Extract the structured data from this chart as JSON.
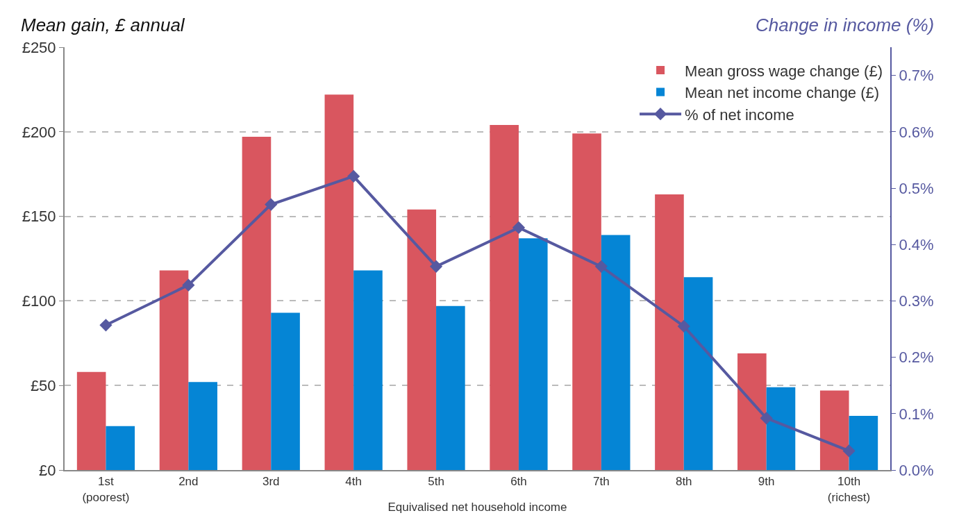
{
  "chart_data": {
    "type": "bar",
    "ylabel": "Mean gain, £ annual",
    "y2label": "Change in income (%)",
    "xlabel": "Equivalised net household income",
    "categories": [
      "1st\n(poorest)",
      "2nd",
      "3rd",
      "4th",
      "5th",
      "6th",
      "7th",
      "8th",
      "9th",
      "10th\n(richest)"
    ],
    "series": [
      {
        "name": "Mean gross wage change (£)",
        "color": "#d9565f",
        "values": [
          58,
          118,
          197,
          222,
          154,
          204,
          199,
          163,
          69,
          47
        ]
      },
      {
        "name": "Mean net income change (£)",
        "color": "#0585d5",
        "values": [
          26,
          52,
          93,
          118,
          97,
          137,
          139,
          114,
          49,
          32
        ]
      },
      {
        "name": "% of net income",
        "type": "line",
        "axis": "y2",
        "color": "#5659a0",
        "marker": "diamond",
        "values": [
          0.257,
          0.328,
          0.471,
          0.521,
          0.361,
          0.43,
          0.361,
          0.255,
          0.092,
          0.034
        ]
      }
    ],
    "ylim": [
      0,
      250
    ],
    "yticks": [
      {
        "value": 0,
        "label": "£0"
      },
      {
        "value": 50,
        "label": "£50"
      },
      {
        "value": 100,
        "label": "£100"
      },
      {
        "value": 150,
        "label": "£150"
      },
      {
        "value": 200,
        "label": "£200"
      },
      {
        "value": 250,
        "label": "£250"
      }
    ],
    "y2lim": [
      0,
      0.75
    ],
    "y2ticks": [
      {
        "value": 0,
        "label": "0.0%"
      },
      {
        "value": 0.1,
        "label": "0.1%"
      },
      {
        "value": 0.2,
        "label": "0.2%"
      },
      {
        "value": 0.3,
        "label": "0.3%"
      },
      {
        "value": 0.4,
        "label": "0.4%"
      },
      {
        "value": 0.5,
        "label": "0.5%"
      },
      {
        "value": 0.6,
        "label": "0.6%"
      },
      {
        "value": 0.7,
        "label": "0.7%"
      }
    ],
    "grid": "y",
    "legend": "top right"
  }
}
